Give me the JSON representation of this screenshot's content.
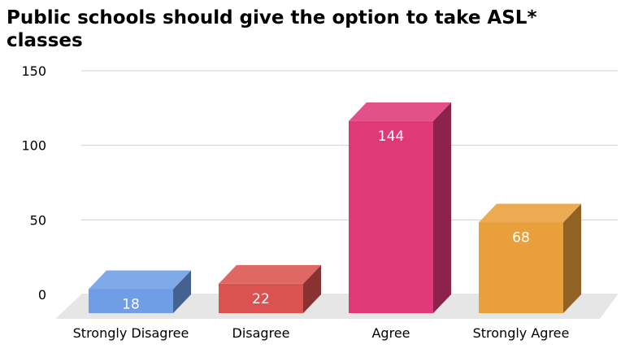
{
  "chart_data": {
    "type": "bar",
    "title": "Public schools should give the option to take ASL* classes",
    "categories": [
      "Strongly Disagree",
      "Disagree",
      "Agree",
      "Strongly Agree"
    ],
    "values": [
      18,
      22,
      144,
      68
    ],
    "xlabel": "",
    "ylabel": "",
    "yticks": [
      0,
      50,
      100,
      150
    ],
    "ylim": [
      0,
      150
    ],
    "grid": true,
    "style": "3d-column",
    "colors": {
      "Strongly Disagree": "#6f9de6",
      "Disagree": "#db5350",
      "Agree": "#e0397a",
      "Strongly Agree": "#e99f3c"
    }
  }
}
